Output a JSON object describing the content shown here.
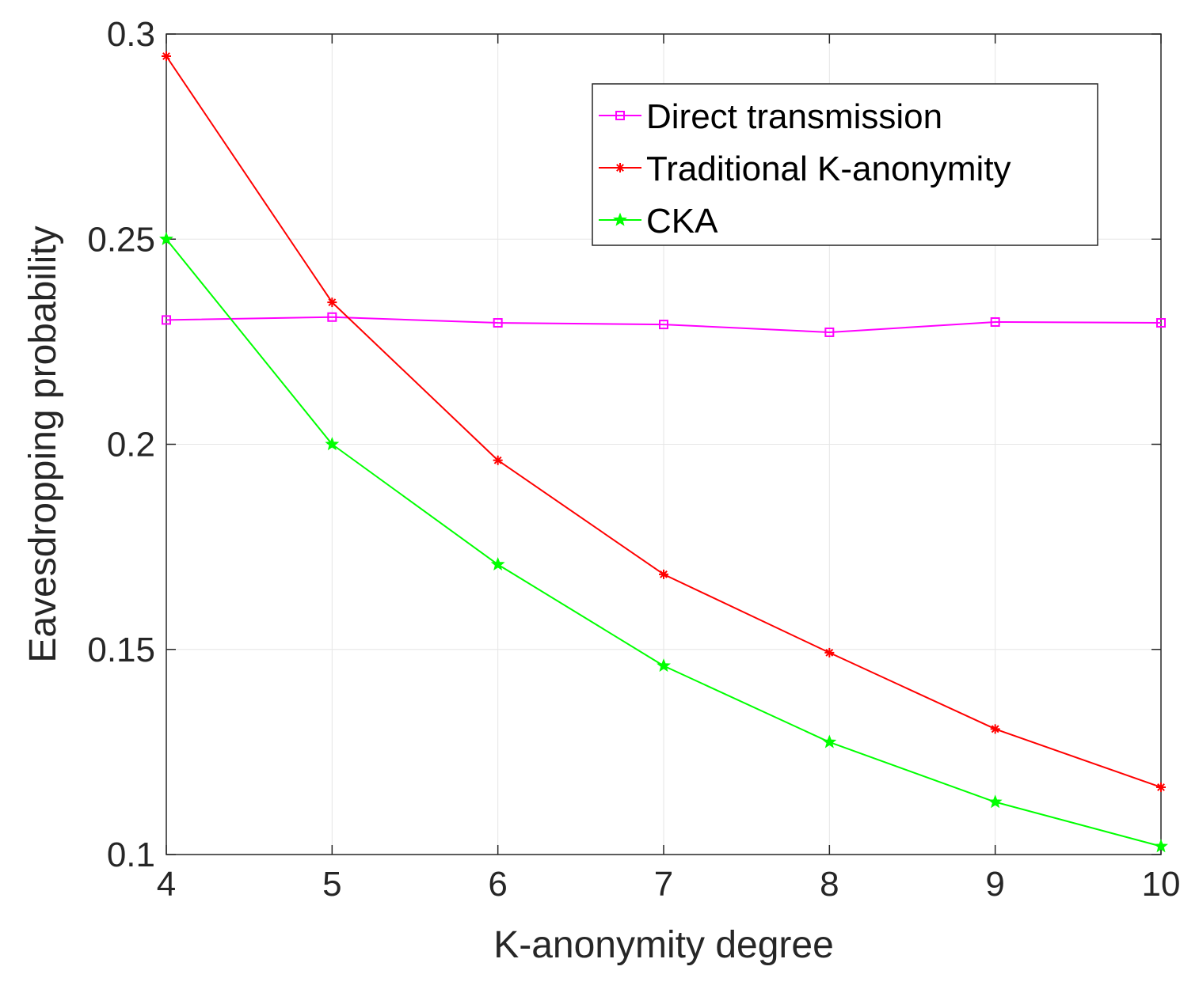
{
  "chart_data": {
    "type": "line",
    "title": "",
    "xlabel": "K-anonymity degree",
    "ylabel": "Eavesdropping probability",
    "x": [
      4,
      5,
      6,
      7,
      8,
      9,
      10
    ],
    "xlim": [
      4,
      10
    ],
    "ylim": [
      0.1,
      0.3
    ],
    "xticks": [
      "4",
      "5",
      "6",
      "7",
      "8",
      "9",
      "10"
    ],
    "yticks": [
      "0.1",
      "0.15",
      "0.2",
      "0.25",
      "0.3"
    ],
    "ytick_values": [
      0.1,
      0.15,
      0.2,
      0.25,
      0.3
    ],
    "grid": true,
    "legend_position": "top-right",
    "series": [
      {
        "name": "Direct transmission",
        "color": "#ff00ff",
        "marker": "square",
        "values": [
          0.2303,
          0.231,
          0.2296,
          0.2292,
          0.2273,
          0.2298,
          0.2296
        ]
      },
      {
        "name": "Traditional K-anonymity",
        "color": "#ff0000",
        "marker": "asterisk",
        "values": [
          0.2946,
          0.2346,
          0.1961,
          0.1683,
          0.1492,
          0.1306,
          0.1164
        ]
      },
      {
        "name": "CKA",
        "color": "#00ff00",
        "marker": "star",
        "values": [
          0.25,
          0.2,
          0.1707,
          0.146,
          0.1274,
          0.1128,
          0.102
        ]
      }
    ]
  }
}
